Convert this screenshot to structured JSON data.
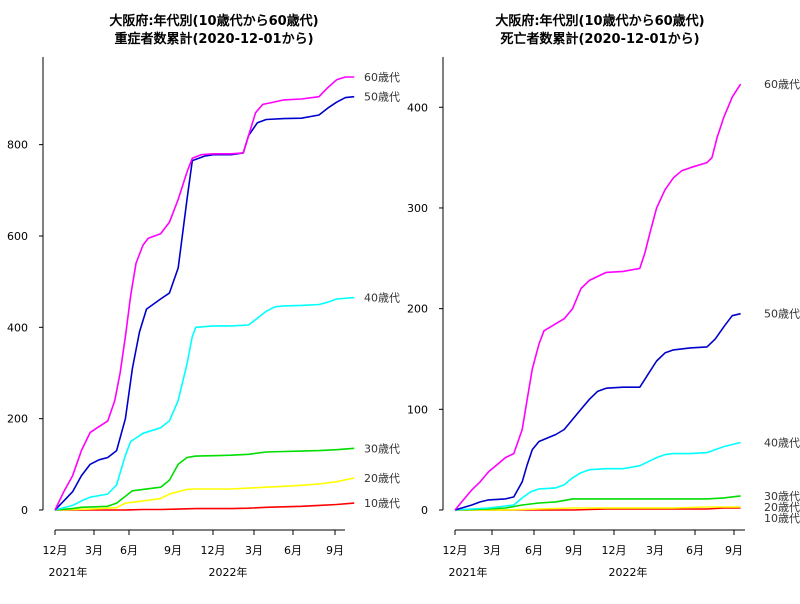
{
  "chart_data": [
    {
      "type": "line",
      "title_line1": "大阪府:年代別(10歳代から60歳代)",
      "title_line2": "重症者数累計(2020-12-01から)",
      "ylim": [
        0,
        970
      ],
      "y_ticks": [
        0,
        200,
        400,
        600,
        800
      ],
      "x_month_ticks": [
        "12月",
        "3月",
        "6月",
        "9月",
        "12月",
        "3月",
        "6月",
        "9月"
      ],
      "x_year_labels": [
        "2021年",
        "2022年"
      ],
      "series": [
        {
          "name": "60歳代",
          "color": "#ff00ff",
          "points": [
            [
              0,
              0
            ],
            [
              0.5,
              40
            ],
            [
              1,
              75
            ],
            [
              1.5,
              130
            ],
            [
              2,
              170
            ],
            [
              2.4,
              180
            ],
            [
              3,
              195
            ],
            [
              3.4,
              240
            ],
            [
              3.7,
              300
            ],
            [
              4,
              380
            ],
            [
              4.3,
              470
            ],
            [
              4.6,
              540
            ],
            [
              5,
              580
            ],
            [
              5.3,
              595
            ],
            [
              6,
              605
            ],
            [
              6.5,
              630
            ],
            [
              7,
              680
            ],
            [
              7.5,
              740
            ],
            [
              7.8,
              770
            ],
            [
              8.3,
              778
            ],
            [
              9,
              780
            ],
            [
              10,
              780
            ],
            [
              10.7,
              782
            ],
            [
              11,
              820
            ],
            [
              11.4,
              870
            ],
            [
              11.8,
              888
            ],
            [
              12.3,
              892
            ],
            [
              13,
              898
            ],
            [
              14,
              900
            ],
            [
              15,
              905
            ],
            [
              15.5,
              925
            ],
            [
              16,
              942
            ],
            [
              16.5,
              948
            ],
            [
              17,
              948
            ]
          ]
        },
        {
          "name": "50歳代",
          "color": "#0000cc",
          "points": [
            [
              0,
              0
            ],
            [
              0.5,
              20
            ],
            [
              1,
              40
            ],
            [
              1.5,
              75
            ],
            [
              2,
              100
            ],
            [
              2.5,
              110
            ],
            [
              3,
              115
            ],
            [
              3.5,
              130
            ],
            [
              4,
              200
            ],
            [
              4.4,
              310
            ],
            [
              4.8,
              390
            ],
            [
              5.2,
              440
            ],
            [
              6,
              462
            ],
            [
              6.5,
              475
            ],
            [
              7,
              530
            ],
            [
              7.5,
              680
            ],
            [
              7.8,
              765
            ],
            [
              8.5,
              775
            ],
            [
              9,
              778
            ],
            [
              10,
              778
            ],
            [
              10.7,
              782
            ],
            [
              11,
              820
            ],
            [
              11.5,
              848
            ],
            [
              12,
              855
            ],
            [
              13,
              857
            ],
            [
              14,
              858
            ],
            [
              15,
              865
            ],
            [
              15.5,
              880
            ],
            [
              16,
              893
            ],
            [
              16.5,
              903
            ],
            [
              17,
              905
            ]
          ]
        },
        {
          "name": "40歳代",
          "color": "#00ffff",
          "points": [
            [
              0,
              0
            ],
            [
              1,
              10
            ],
            [
              1.5,
              20
            ],
            [
              2,
              28
            ],
            [
              3,
              35
            ],
            [
              3.5,
              55
            ],
            [
              4,
              120
            ],
            [
              4.3,
              150
            ],
            [
              5,
              168
            ],
            [
              6,
              180
            ],
            [
              6.5,
              195
            ],
            [
              7,
              240
            ],
            [
              7.5,
              320
            ],
            [
              7.8,
              380
            ],
            [
              8,
              400
            ],
            [
              9,
              403
            ],
            [
              10,
              403
            ],
            [
              11,
              405
            ],
            [
              11.5,
              420
            ],
            [
              12,
              435
            ],
            [
              12.5,
              445
            ],
            [
              13,
              447
            ],
            [
              14,
              448
            ],
            [
              15,
              450
            ],
            [
              15.5,
              455
            ],
            [
              16,
              462
            ],
            [
              17,
              465
            ]
          ]
        },
        {
          "name": "30歳代",
          "color": "#00dd00",
          "points": [
            [
              0,
              0
            ],
            [
              1,
              3
            ],
            [
              1.5,
              6
            ],
            [
              3,
              8
            ],
            [
              3.5,
              15
            ],
            [
              4,
              30
            ],
            [
              4.4,
              42
            ],
            [
              5,
              45
            ],
            [
              6,
              50
            ],
            [
              6.5,
              65
            ],
            [
              7,
              100
            ],
            [
              7.5,
              115
            ],
            [
              8,
              118
            ],
            [
              9,
              119
            ],
            [
              10,
              120
            ],
            [
              11,
              122
            ],
            [
              12,
              127
            ],
            [
              13,
              128
            ],
            [
              14,
              129
            ],
            [
              15,
              130
            ],
            [
              16,
              132
            ],
            [
              17,
              135
            ]
          ]
        },
        {
          "name": "20歳代",
          "color": "#ffff00",
          "points": [
            [
              0,
              0
            ],
            [
              2,
              2
            ],
            [
              3.5,
              5
            ],
            [
              4,
              15
            ],
            [
              5,
              20
            ],
            [
              6,
              25
            ],
            [
              6.5,
              35
            ],
            [
              7,
              40
            ],
            [
              7.5,
              45
            ],
            [
              8,
              46
            ],
            [
              10,
              46
            ],
            [
              11,
              48
            ],
            [
              12,
              50
            ],
            [
              13,
              52
            ],
            [
              14,
              54
            ],
            [
              15,
              57
            ],
            [
              16,
              62
            ],
            [
              17,
              70
            ]
          ]
        },
        {
          "name": "10歳代",
          "color": "#ff0000",
          "points": [
            [
              0,
              0
            ],
            [
              3,
              0
            ],
            [
              4,
              0
            ],
            [
              5,
              1
            ],
            [
              6,
              1
            ],
            [
              7,
              2
            ],
            [
              8,
              3
            ],
            [
              10,
              3
            ],
            [
              11,
              4
            ],
            [
              12,
              6
            ],
            [
              13,
              7
            ],
            [
              14,
              8
            ],
            [
              15,
              10
            ],
            [
              16,
              12
            ],
            [
              17,
              15
            ]
          ]
        }
      ]
    },
    {
      "type": "line",
      "title_line1": "大阪府:年代別(10歳代から60歳代)",
      "title_line2": "死亡者数累計(2020-12-01から)",
      "ylim": [
        0,
        440
      ],
      "y_ticks": [
        0,
        100,
        200,
        300,
        400
      ],
      "x_month_ticks": [
        "12月",
        "3月",
        "6月",
        "9月",
        "12月",
        "3月",
        "6月",
        "9月"
      ],
      "x_year_labels": [
        "2021年",
        "2022年"
      ],
      "series": [
        {
          "name": "60歳代",
          "color": "#ff00ff",
          "points": [
            [
              0,
              0
            ],
            [
              0.5,
              10
            ],
            [
              1,
              20
            ],
            [
              1.5,
              28
            ],
            [
              2,
              38
            ],
            [
              2.5,
              45
            ],
            [
              3,
              52
            ],
            [
              3.5,
              56
            ],
            [
              4,
              80
            ],
            [
              4.3,
              110
            ],
            [
              4.6,
              140
            ],
            [
              5,
              165
            ],
            [
              5.3,
              178
            ],
            [
              6,
              185
            ],
            [
              6.5,
              190
            ],
            [
              7,
              200
            ],
            [
              7.5,
              220
            ],
            [
              8,
              228
            ],
            [
              8.5,
              232
            ],
            [
              9,
              236
            ],
            [
              10,
              237
            ],
            [
              11,
              240
            ],
            [
              11.3,
              255
            ],
            [
              11.6,
              275
            ],
            [
              12,
              300
            ],
            [
              12.5,
              318
            ],
            [
              13,
              330
            ],
            [
              13.5,
              337
            ],
            [
              14,
              340
            ],
            [
              15,
              345
            ],
            [
              15.3,
              350
            ],
            [
              15.6,
              370
            ],
            [
              16,
              390
            ],
            [
              16.5,
              410
            ],
            [
              17,
              423
            ]
          ]
        },
        {
          "name": "50歳代",
          "color": "#0000cc",
          "points": [
            [
              0,
              0
            ],
            [
              1,
              5
            ],
            [
              1.5,
              8
            ],
            [
              2,
              10
            ],
            [
              3,
              11
            ],
            [
              3.5,
              13
            ],
            [
              4,
              28
            ],
            [
              4.3,
              45
            ],
            [
              4.6,
              60
            ],
            [
              5,
              68
            ],
            [
              6,
              75
            ],
            [
              6.5,
              80
            ],
            [
              7,
              90
            ],
            [
              7.5,
              100
            ],
            [
              8,
              110
            ],
            [
              8.5,
              118
            ],
            [
              9,
              121
            ],
            [
              10,
              122
            ],
            [
              11,
              122
            ],
            [
              11.5,
              135
            ],
            [
              12,
              148
            ],
            [
              12.5,
              156
            ],
            [
              13,
              159
            ],
            [
              14,
              161
            ],
            [
              15,
              162
            ],
            [
              15.5,
              170
            ],
            [
              16,
              182
            ],
            [
              16.5,
              193
            ],
            [
              17,
              195
            ]
          ]
        },
        {
          "name": "40歳代",
          "color": "#00ffff",
          "points": [
            [
              0,
              0
            ],
            [
              1,
              1
            ],
            [
              2,
              2
            ],
            [
              3,
              4
            ],
            [
              3.5,
              5
            ],
            [
              4,
              12
            ],
            [
              4.5,
              18
            ],
            [
              5,
              21
            ],
            [
              6,
              22
            ],
            [
              6.5,
              25
            ],
            [
              7,
              32
            ],
            [
              7.5,
              37
            ],
            [
              8,
              40
            ],
            [
              9,
              41
            ],
            [
              10,
              41
            ],
            [
              11,
              44
            ],
            [
              11.5,
              48
            ],
            [
              12,
              52
            ],
            [
              12.5,
              55
            ],
            [
              13,
              56
            ],
            [
              14,
              56
            ],
            [
              15,
              57
            ],
            [
              15.5,
              60
            ],
            [
              16,
              63
            ],
            [
              17,
              67
            ]
          ]
        },
        {
          "name": "30歳代",
          "color": "#00dd00",
          "points": [
            [
              0,
              0
            ],
            [
              2,
              1
            ],
            [
              3,
              2
            ],
            [
              4,
              5
            ],
            [
              5,
              7
            ],
            [
              6,
              8
            ],
            [
              7,
              11
            ],
            [
              8,
              11
            ],
            [
              10,
              11
            ],
            [
              12,
              11
            ],
            [
              14,
              11
            ],
            [
              15,
              11
            ],
            [
              16,
              12
            ],
            [
              17,
              14
            ]
          ]
        },
        {
          "name": "20歳代",
          "color": "#ffff00",
          "points": [
            [
              0,
              0
            ],
            [
              3,
              0
            ],
            [
              5,
              1
            ],
            [
              7,
              2
            ],
            [
              9,
              2
            ],
            [
              11,
              2
            ],
            [
              13,
              2
            ],
            [
              15,
              3
            ],
            [
              17,
              3
            ]
          ]
        },
        {
          "name": "10歳代",
          "color": "#ff0000",
          "points": [
            [
              0,
              0
            ],
            [
              5,
              0
            ],
            [
              7,
              0
            ],
            [
              9,
              1
            ],
            [
              11,
              1
            ],
            [
              13,
              1
            ],
            [
              15,
              1
            ],
            [
              16,
              2
            ],
            [
              17,
              2
            ]
          ]
        }
      ]
    }
  ]
}
